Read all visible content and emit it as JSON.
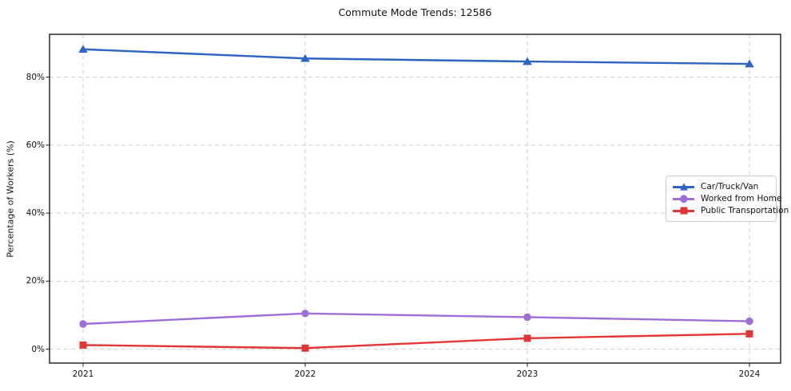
{
  "title": "Commute Mode Trends: 12586",
  "chart_data": {
    "type": "line",
    "title": "Commute Mode Trends: 12586",
    "xlabel": "",
    "ylabel": "Percentage of Workers (%)",
    "categories": [
      "2021",
      "2022",
      "2023",
      "2024"
    ],
    "series": [
      {
        "name": "Car/Truck/Van",
        "color": "#2d63c1",
        "marker": "triangle",
        "values": [
          88.2,
          85.5,
          84.6,
          83.9
        ]
      },
      {
        "name": "Worked from Home",
        "color": "#9d6fd6",
        "marker": "circle",
        "values": [
          7.4,
          10.5,
          9.4,
          8.2
        ]
      },
      {
        "name": "Public Transportation",
        "color": "#e23636",
        "marker": "square",
        "values": [
          1.2,
          0.3,
          3.2,
          4.5
        ]
      }
    ],
    "yticks": [
      0,
      20,
      40,
      60,
      80
    ],
    "ytick_labels": [
      "0%",
      "20%",
      "40%",
      "60%",
      "80%"
    ],
    "ylim": [
      -4.1,
      92.6
    ],
    "grid": true,
    "grid_style": "dashed",
    "legend_position": "center right",
    "background": "#ffffff"
  }
}
